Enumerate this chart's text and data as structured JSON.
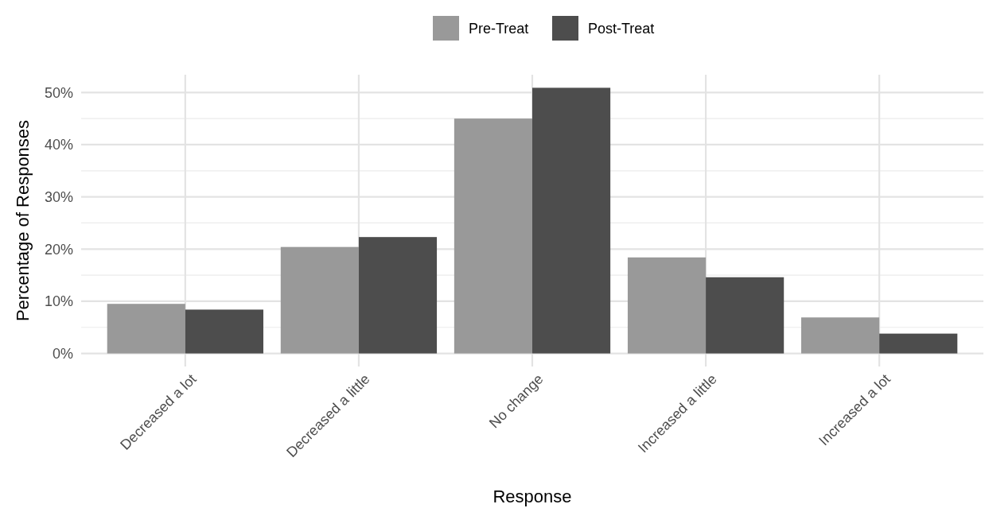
{
  "chart_data": {
    "type": "bar",
    "xlabel": "Response",
    "ylabel": "Percentage of Responses",
    "categories": [
      "Decreased a lot",
      "Decreased a little",
      "No change",
      "Increased a little",
      "Increased a lot"
    ],
    "series": [
      {
        "name": "Pre-Treat",
        "color": "#999999",
        "values": [
          9.5,
          20.4,
          45.0,
          18.4,
          6.9
        ]
      },
      {
        "name": "Post-Treat",
        "color": "#4d4d4d",
        "values": [
          8.4,
          22.3,
          50.9,
          14.6,
          3.8
        ]
      }
    ],
    "ylim": [
      -2.5,
      53.4
    ],
    "yticks": [
      {
        "value": 0,
        "label": "0%"
      },
      {
        "value": 10,
        "label": "10%"
      },
      {
        "value": 20,
        "label": "20%"
      },
      {
        "value": 30,
        "label": "30%"
      },
      {
        "value": 40,
        "label": "40%"
      },
      {
        "value": 50,
        "label": "50%"
      }
    ],
    "grid": true,
    "legend": "top"
  }
}
